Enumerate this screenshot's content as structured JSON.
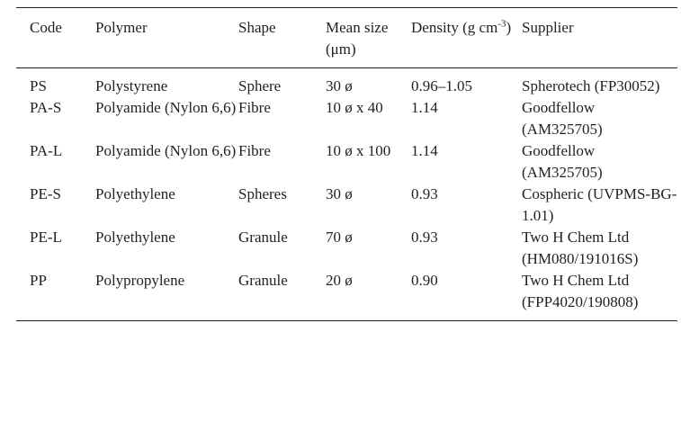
{
  "table": {
    "header": [
      "Code",
      "Polymer",
      "Shape",
      "Mean size (μm)",
      [
        "Density (g cm",
        "-3",
        ")"
      ],
      "Supplier"
    ],
    "rows": [
      [
        "PS",
        "Polystyrene",
        "Sphere",
        "30 ø",
        "0.96–1.05",
        "Spherotech (FP30052)"
      ],
      [
        "PA-S",
        "Polyamide (Nylon 6,6)",
        "Fibre",
        "10 ø x 40",
        "1.14",
        "Goodfellow (AM325705)"
      ],
      [
        "PA-L",
        "Polyamide (Nylon 6,6)",
        "Fibre",
        "10 ø x 100",
        "1.14",
        "Goodfellow (AM325705)"
      ],
      [
        "PE-S",
        "Polyethylene",
        "Spheres",
        "30 ø",
        "0.93",
        "Cospheric (UVPMS-BG-1.01)"
      ],
      [
        "PE-L",
        "Polyethylene",
        "Granule",
        "70 ø",
        "0.93",
        "Two H Chem Ltd (HM080/191016S)"
      ],
      [
        "PP",
        "Polypropylene",
        "Granule",
        "20 ø",
        "0.90",
        "Two H Chem Ltd (FPP4020/190808)"
      ]
    ]
  }
}
